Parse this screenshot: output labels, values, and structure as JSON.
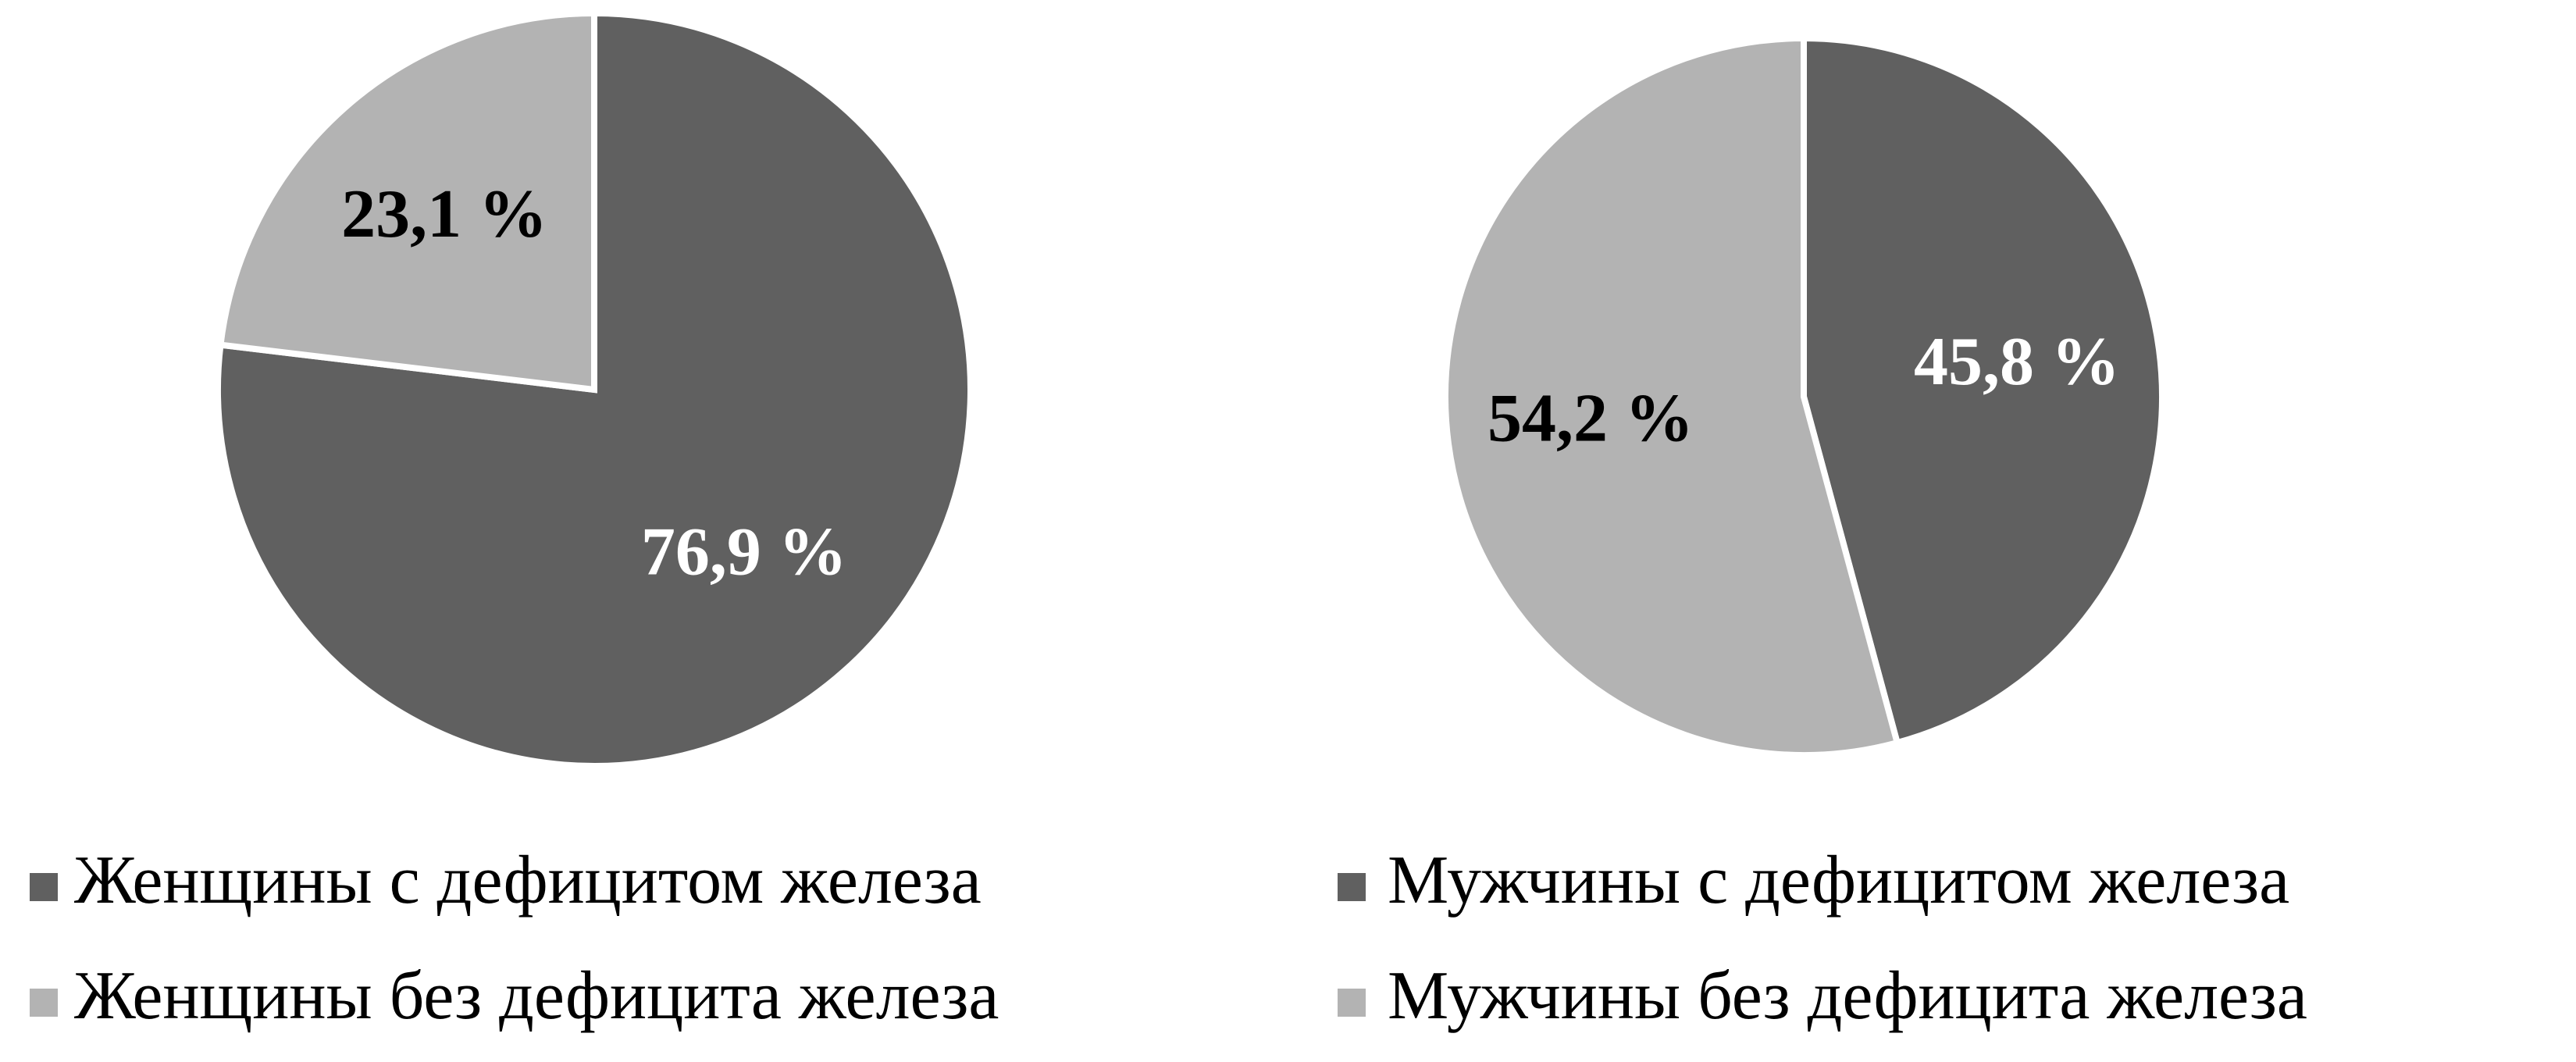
{
  "chart_data": [
    {
      "type": "pie",
      "categories": [
        "Женщины с дефицитом железа",
        "Женщины без дефицита железа"
      ],
      "values": [
        76.9,
        23.1
      ],
      "value_labels": [
        "76,9 %",
        "23,1 %"
      ],
      "colors": [
        "#606060",
        "#b3b3b3"
      ]
    },
    {
      "type": "pie",
      "categories": [
        "Мужчины с дефицитом железа",
        "Мужчины без дефицита железа"
      ],
      "values": [
        45.8,
        54.2
      ],
      "value_labels": [
        "45,8 %",
        "54,2 %"
      ],
      "colors": [
        "#606060",
        "#b3b3b3"
      ]
    }
  ]
}
